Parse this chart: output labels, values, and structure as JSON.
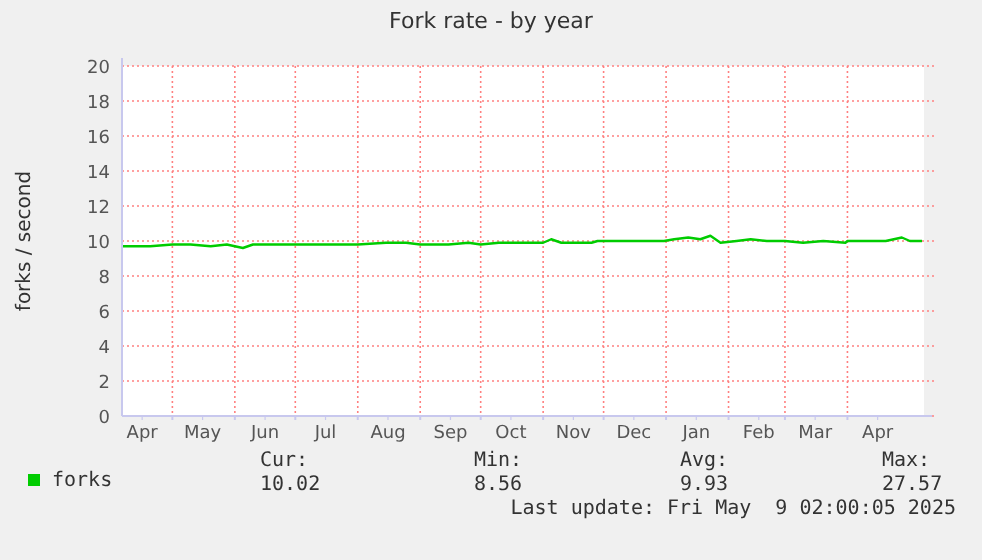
{
  "chart_data": {
    "type": "line",
    "title": "Fork rate - by year",
    "ylabel": "forks / second",
    "x": [
      "2024-04-06",
      "2024-04-20",
      "2024-05-01",
      "2024-05-10",
      "2024-05-20",
      "2024-05-28",
      "2024-06-05",
      "2024-06-10",
      "2024-06-20",
      "2024-07-01",
      "2024-07-10",
      "2024-07-20",
      "2024-08-01",
      "2024-08-15",
      "2024-08-25",
      "2024-09-01",
      "2024-09-15",
      "2024-09-25",
      "2024-10-01",
      "2024-10-10",
      "2024-10-25",
      "2024-11-01",
      "2024-11-05",
      "2024-11-10",
      "2024-11-25",
      "2024-11-28",
      "2024-12-15",
      "2024-12-31",
      "2025-01-05",
      "2025-01-12",
      "2025-01-18",
      "2025-01-23",
      "2025-01-28",
      "2025-02-05",
      "2025-02-12",
      "2025-02-20",
      "2025-03-01",
      "2025-03-10",
      "2025-03-20",
      "2025-03-31",
      "2025-04-01",
      "2025-04-20",
      "2025-04-28",
      "2025-05-02",
      "2025-05-08"
    ],
    "series": [
      {
        "name": "forks",
        "color": "#00cc00",
        "values": [
          9.7,
          9.7,
          9.8,
          9.8,
          9.7,
          9.8,
          9.6,
          9.8,
          9.8,
          9.8,
          9.8,
          9.8,
          9.8,
          9.9,
          9.9,
          9.8,
          9.8,
          9.9,
          9.8,
          9.9,
          9.9,
          9.9,
          10.1,
          9.9,
          9.9,
          10.0,
          10.0,
          10.0,
          10.1,
          10.2,
          10.1,
          10.3,
          9.9,
          10.0,
          10.1,
          10.0,
          10.0,
          9.9,
          10.0,
          9.9,
          10.0,
          10.0,
          10.2,
          10.0,
          10.0
        ]
      }
    ],
    "xlim": [
      "2024-04-06",
      "2025-05-09"
    ],
    "xticks": [
      {
        "value": "2024-04-16",
        "label": "Apr"
      },
      {
        "value": "2024-05-01",
        "label": null
      },
      {
        "value": "2024-05-16",
        "label": "May"
      },
      {
        "value": "2024-06-01",
        "label": null
      },
      {
        "value": "2024-06-16",
        "label": "Jun"
      },
      {
        "value": "2024-07-01",
        "label": null
      },
      {
        "value": "2024-07-16",
        "label": "Jul"
      },
      {
        "value": "2024-08-01",
        "label": null
      },
      {
        "value": "2024-08-16",
        "label": "Aug"
      },
      {
        "value": "2024-09-01",
        "label": null
      },
      {
        "value": "2024-09-16",
        "label": "Sep"
      },
      {
        "value": "2024-10-01",
        "label": null
      },
      {
        "value": "2024-10-16",
        "label": "Oct"
      },
      {
        "value": "2024-11-01",
        "label": null
      },
      {
        "value": "2024-11-16",
        "label": "Nov"
      },
      {
        "value": "2024-12-01",
        "label": null
      },
      {
        "value": "2024-12-16",
        "label": "Dec"
      },
      {
        "value": "2025-01-01",
        "label": null
      },
      {
        "value": "2025-01-16",
        "label": "Jan"
      },
      {
        "value": "2025-02-01",
        "label": null
      },
      {
        "value": "2025-02-16",
        "label": "Feb"
      },
      {
        "value": "2025-03-01",
        "label": null
      },
      {
        "value": "2025-03-16",
        "label": "Mar"
      },
      {
        "value": "2025-04-01",
        "label": null
      },
      {
        "value": "2025-04-16",
        "label": "Apr"
      }
    ],
    "ylim": [
      0,
      20
    ],
    "yticks": [
      0,
      2,
      4,
      6,
      8,
      10,
      12,
      14,
      16,
      18,
      20
    ],
    "grid": true,
    "legend": "bottom",
    "marker": "none",
    "line_style": "solid",
    "annotations": [
      "Cur:",
      "10.02",
      "Min:",
      "8.56",
      "Avg:",
      "9.93",
      "Max:",
      "27.57",
      "Last update: Fri May  9 02:00:05 2025"
    ]
  }
}
